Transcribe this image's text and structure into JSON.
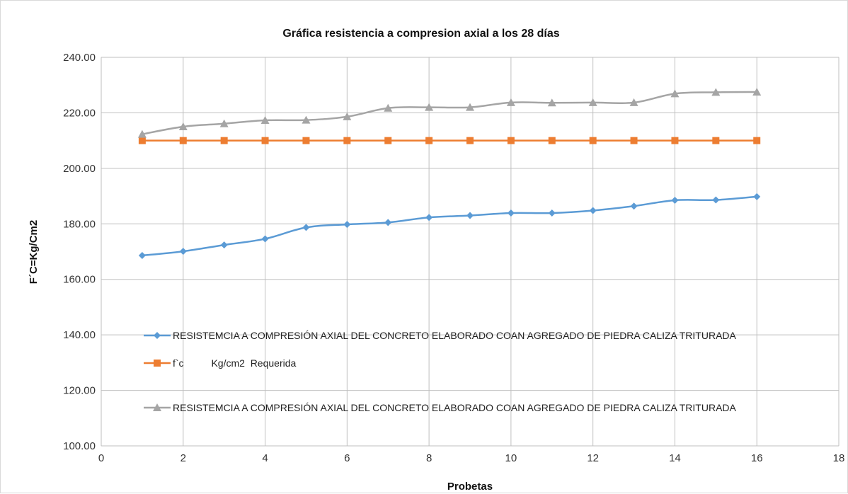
{
  "chart_data": {
    "type": "line",
    "title": "Gráfica resistencia a compresion axial a los 28 días",
    "xlabel": "Probetas",
    "ylabel": "F´C=Kg/Cm2",
    "xlim": [
      0,
      18
    ],
    "ylim": [
      100,
      240
    ],
    "x_ticks": [
      "0",
      "2",
      "4",
      "6",
      "8",
      "10",
      "12",
      "14",
      "16",
      "18"
    ],
    "x_tick_values": [
      0,
      2,
      4,
      6,
      8,
      10,
      12,
      14,
      16,
      18
    ],
    "y_ticks": [
      "100.00",
      "120.00",
      "140.00",
      "160.00",
      "180.00",
      "200.00",
      "220.00",
      "240.00"
    ],
    "y_tick_values": [
      100,
      120,
      140,
      160,
      180,
      200,
      220,
      240
    ],
    "grid": true,
    "x": [
      1,
      2,
      3,
      4,
      5,
      6,
      7,
      8,
      9,
      10,
      11,
      12,
      13,
      14,
      15,
      16
    ],
    "series": [
      {
        "name": "RESISTEMCIA A COMPRESIÓN AXIAL DEL CONCRETO ELABORADO COAN AGREGADO DE PIEDRA CALIZA TRITURADA",
        "color": "#5b9bd5",
        "marker": "diamond",
        "values": [
          168.6,
          170.1,
          172.4,
          174.6,
          178.7,
          179.8,
          180.5,
          182.3,
          183.0,
          183.9,
          183.9,
          184.8,
          186.4,
          188.5,
          188.6,
          189.8
        ]
      },
      {
        "name": "f`c          Kg/cm2  Requerida",
        "color": "#ed7d31",
        "marker": "square",
        "values": [
          210,
          210,
          210,
          210,
          210,
          210,
          210,
          210,
          210,
          210,
          210,
          210,
          210,
          210,
          210,
          210
        ]
      },
      {
        "name": "RESISTEMCIA A COMPRESIÓN AXIAL DEL CONCRETO ELABORADO COAN AGREGADO DE PIEDRA CALIZA TRITURADA",
        "color": "#a5a5a5",
        "marker": "triangle",
        "values": [
          212.3,
          215.0,
          216.1,
          217.3,
          217.4,
          218.6,
          221.7,
          222.0,
          222.0,
          223.7,
          223.6,
          223.7,
          223.7,
          226.9,
          227.4,
          227.5
        ]
      }
    ]
  }
}
